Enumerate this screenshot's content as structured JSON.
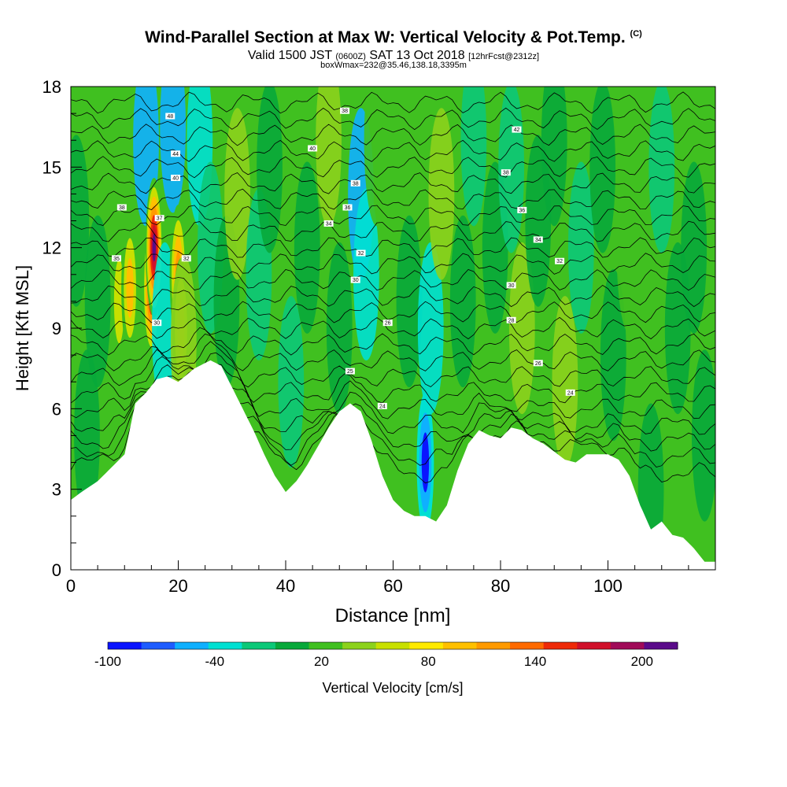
{
  "chart_data": {
    "type": "heatmap",
    "title": "Wind-Parallel Section at Max W: Vertical Velocity & Pot.Temp.",
    "title_mark": "(C)",
    "subtitle_main_1": "Valid 1500 JST",
    "subtitle_small_1": "(0600Z)",
    "subtitle_main_2": "SAT 13 Oct 2018",
    "subtitle_small_2": "[12hrFcst@2312z]",
    "subtitle_line3": "boxWmax=232@35.46,138.18,3395m",
    "xlabel": "Distance [nm]",
    "ylabel": "Height [Kft MSL]",
    "xlim": [
      0,
      120
    ],
    "ylim": [
      0,
      18
    ],
    "x_ticks": [
      "0",
      "20",
      "40",
      "60",
      "80",
      "100"
    ],
    "y_ticks": [
      "0",
      "3",
      "6",
      "9",
      "12",
      "15",
      "18"
    ],
    "x_tick_values": [
      0,
      20,
      40,
      60,
      80,
      100
    ],
    "y_tick_values": [
      0,
      3,
      6,
      9,
      12,
      15,
      18
    ],
    "colorbar": {
      "label": "Vertical Velocity [cm/s]",
      "min": -100,
      "max": 220,
      "tick_labels": [
        "-100",
        "-40",
        "20",
        "80",
        "140",
        "200"
      ],
      "tick_values": [
        -100,
        -40,
        20,
        80,
        140,
        200
      ],
      "colors": [
        "#0a14ff",
        "#1e5cff",
        "#0fb0ff",
        "#00e0d2",
        "#0cc878",
        "#08a83a",
        "#40c020",
        "#8cd21c",
        "#c8e000",
        "#ffea00",
        "#ffc000",
        "#ff9a00",
        "#ff6a00",
        "#ee2a08",
        "#d0102a",
        "#a00a58",
        "#5a0a8a"
      ]
    },
    "terrain_profile": {
      "x": [
        0,
        2,
        5,
        8,
        10,
        12,
        14,
        16,
        18,
        20,
        23,
        26,
        28,
        30,
        32,
        34,
        36,
        38,
        40,
        42,
        44,
        46,
        48,
        50,
        52,
        54,
        56,
        58,
        60,
        62,
        64,
        66,
        68,
        70,
        72,
        74,
        76,
        78,
        80,
        82,
        84,
        86,
        88,
        90,
        92,
        94,
        96,
        98,
        100,
        102,
        104,
        106,
        108,
        110,
        112,
        114,
        116,
        118,
        120
      ],
      "y": [
        2.6,
        2.9,
        3.3,
        3.9,
        4.3,
        6.2,
        6.6,
        7.1,
        7.2,
        7.0,
        7.5,
        7.8,
        7.6,
        6.8,
        6.0,
        5.2,
        4.3,
        3.5,
        2.9,
        3.3,
        3.9,
        4.6,
        5.3,
        5.9,
        6.2,
        5.9,
        4.8,
        3.5,
        2.6,
        2.2,
        2.0,
        2.0,
        1.8,
        2.4,
        3.7,
        4.7,
        5.2,
        5.0,
        4.9,
        5.3,
        5.2,
        4.9,
        4.7,
        4.4,
        4.1,
        4.0,
        4.3,
        4.3,
        4.3,
        4.1,
        3.5,
        2.4,
        1.5,
        1.8,
        1.3,
        1.2,
        0.8,
        0.3,
        0.3
      ]
    },
    "vertical_velocity_cells": [
      {
        "x": 1,
        "y": 13,
        "w": 10
      },
      {
        "x": 3,
        "y": 5,
        "w": 10
      },
      {
        "x": 5,
        "y": 10,
        "w": 10
      },
      {
        "x": 9,
        "y": 10,
        "w": 70
      },
      {
        "x": 11,
        "y": 10.5,
        "w": 90
      },
      {
        "x": 14,
        "y": 16,
        "w": -50
      },
      {
        "x": 15,
        "y": 10.5,
        "w": 200
      },
      {
        "x": 15.5,
        "y": 12,
        "w": 210
      },
      {
        "x": 17.5,
        "y": 9,
        "w": -40
      },
      {
        "x": 19,
        "y": 16.5,
        "w": -45
      },
      {
        "x": 20,
        "y": 11,
        "w": 140
      },
      {
        "x": 20.5,
        "y": 9,
        "w": 110
      },
      {
        "x": 21,
        "y": 8.5,
        "w": 40
      },
      {
        "x": 24,
        "y": 16,
        "w": -40
      },
      {
        "x": 26,
        "y": 12,
        "w": -20
      },
      {
        "x": 29,
        "y": 10,
        "w": 10
      },
      {
        "x": 31,
        "y": 14,
        "w": 40
      },
      {
        "x": 35,
        "y": 11,
        "w": -20
      },
      {
        "x": 37,
        "y": 15,
        "w": 10
      },
      {
        "x": 41,
        "y": 7,
        "w": -20
      },
      {
        "x": 44,
        "y": 12,
        "w": 10
      },
      {
        "x": 48,
        "y": 16,
        "w": 40
      },
      {
        "x": 50,
        "y": 9,
        "w": 10
      },
      {
        "x": 54,
        "y": 14,
        "w": -45
      },
      {
        "x": 55,
        "y": 11,
        "w": -35
      },
      {
        "x": 57,
        "y": 16,
        "w": 30
      },
      {
        "x": 61,
        "y": 14,
        "w": 30
      },
      {
        "x": 63,
        "y": 10,
        "w": 10
      },
      {
        "x": 66,
        "y": 4,
        "w": -90
      },
      {
        "x": 67,
        "y": 9,
        "w": -40
      },
      {
        "x": 69,
        "y": 14,
        "w": 40
      },
      {
        "x": 73,
        "y": 10,
        "w": 10
      },
      {
        "x": 75,
        "y": 16,
        "w": -20
      },
      {
        "x": 79,
        "y": 12,
        "w": 10
      },
      {
        "x": 82,
        "y": 15,
        "w": -15
      },
      {
        "x": 84,
        "y": 9,
        "w": 40
      },
      {
        "x": 87,
        "y": 13,
        "w": 10
      },
      {
        "x": 90,
        "y": 16,
        "w": 10
      },
      {
        "x": 92,
        "y": 7,
        "w": 40
      },
      {
        "x": 95,
        "y": 12,
        "w": -15
      },
      {
        "x": 99,
        "y": 15,
        "w": 10
      },
      {
        "x": 101,
        "y": 8,
        "w": 10
      },
      {
        "x": 104,
        "y": 12,
        "w": 30
      },
      {
        "x": 108,
        "y": 3,
        "w": 10
      },
      {
        "x": 110,
        "y": 15,
        "w": -15
      },
      {
        "x": 113,
        "y": 9,
        "w": 10
      },
      {
        "x": 116,
        "y": 12,
        "w": 10
      },
      {
        "x": 118,
        "y": 5,
        "w": 10
      }
    ],
    "theta_contours": {
      "base_heights_kft": [
        3.6,
        4.2,
        4.8,
        5.4,
        6.0,
        6.6,
        7.2,
        7.8,
        8.4,
        9.0,
        9.6,
        10.2,
        10.8,
        11.4,
        12.0,
        12.6,
        13.2,
        13.8,
        14.4,
        15.0,
        15.6,
        16.2,
        16.8,
        17.4
      ]
    },
    "contour_labels": [
      {
        "text": "48",
        "x": 18.5,
        "y": 16.9
      },
      {
        "text": "44",
        "x": 19.5,
        "y": 15.5
      },
      {
        "text": "40",
        "x": 19.5,
        "y": 14.6
      },
      {
        "text": "38",
        "x": 9.5,
        "y": 13.5
      },
      {
        "text": "37",
        "x": 16.5,
        "y": 13.1
      },
      {
        "text": "35",
        "x": 8.5,
        "y": 11.6
      },
      {
        "text": "32",
        "x": 21.5,
        "y": 11.6
      },
      {
        "text": "30",
        "x": 16,
        "y": 9.2
      },
      {
        "text": "38",
        "x": 51,
        "y": 17.1
      },
      {
        "text": "40",
        "x": 45,
        "y": 15.7
      },
      {
        "text": "38",
        "x": 53,
        "y": 14.4
      },
      {
        "text": "36",
        "x": 51.5,
        "y": 13.5
      },
      {
        "text": "34",
        "x": 48,
        "y": 12.9
      },
      {
        "text": "32",
        "x": 54,
        "y": 11.8
      },
      {
        "text": "30",
        "x": 53,
        "y": 10.8
      },
      {
        "text": "26",
        "x": 59,
        "y": 9.2
      },
      {
        "text": "25",
        "x": 52,
        "y": 7.4
      },
      {
        "text": "24",
        "x": 58,
        "y": 6.1
      },
      {
        "text": "42",
        "x": 83,
        "y": 16.4
      },
      {
        "text": "38",
        "x": 81,
        "y": 14.8
      },
      {
        "text": "36",
        "x": 84,
        "y": 13.4
      },
      {
        "text": "34",
        "x": 87,
        "y": 12.3
      },
      {
        "text": "32",
        "x": 91,
        "y": 11.5
      },
      {
        "text": "30",
        "x": 82,
        "y": 10.6
      },
      {
        "text": "28",
        "x": 82,
        "y": 9.3
      },
      {
        "text": "26",
        "x": 87,
        "y": 7.7
      },
      {
        "text": "24",
        "x": 93,
        "y": 6.6
      }
    ]
  }
}
